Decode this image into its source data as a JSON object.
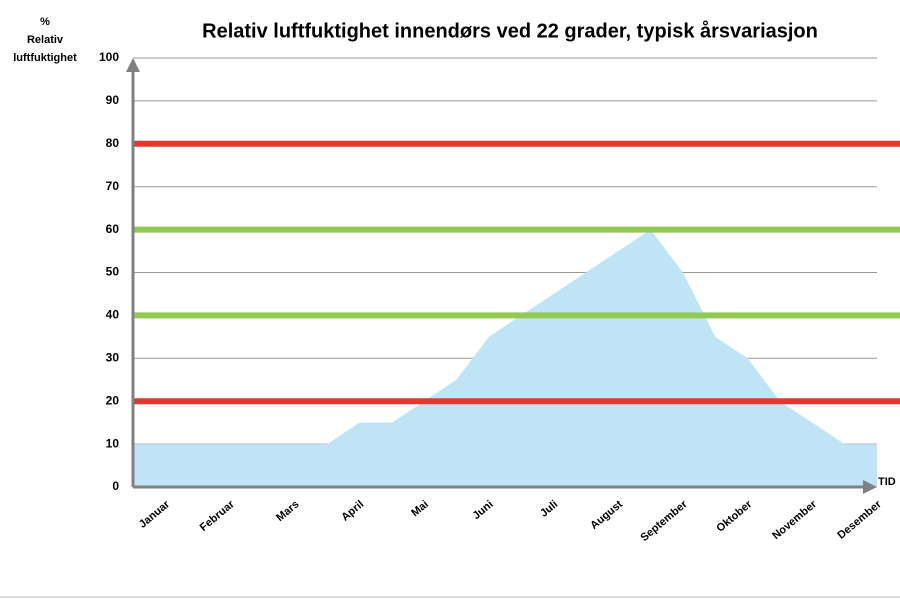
{
  "chart_data": {
    "type": "area",
    "title": "Relativ luftfuktighet innendørs ved 22 grader, typisk årsvariasjon",
    "y_label": [
      "%",
      "Relativ",
      "luftfuktighet"
    ],
    "x_label": "TID",
    "categories": [
      null,
      "Januar",
      null,
      "Februar",
      null,
      "Mars",
      null,
      "April",
      null,
      "Mai",
      null,
      "Juni",
      null,
      "Juli",
      null,
      "August",
      null,
      "September",
      null,
      "Oktober",
      null,
      "November",
      null,
      "Desember"
    ],
    "values": [
      10,
      10,
      10,
      10,
      10,
      10,
      10,
      15,
      15,
      20,
      25,
      35,
      40,
      45,
      50,
      55,
      60,
      50,
      35,
      30,
      20,
      15,
      10,
      10
    ],
    "color": "#bfe4f6",
    "ylim": [
      0,
      100
    ],
    "yticks": [
      0,
      10,
      20,
      30,
      40,
      50,
      60,
      70,
      80,
      90,
      100
    ],
    "grid": true,
    "reference_lines": [
      {
        "value": 80,
        "color": "#e03a2e"
      },
      {
        "value": 60,
        "color": "#92c952"
      },
      {
        "value": 40,
        "color": "#92c952"
      },
      {
        "value": 20,
        "color": "#e03a2e"
      }
    ]
  }
}
